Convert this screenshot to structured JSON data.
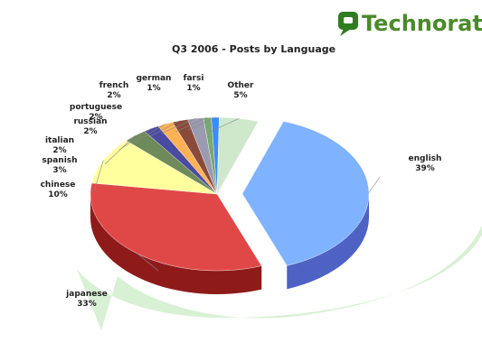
{
  "brand": {
    "name": "Technorati",
    "color": "#2f7d1f"
  },
  "chart_data": {
    "type": "pie",
    "title": "Q3 2006 - Posts by Language",
    "slices": [
      {
        "label": "english",
        "value": 39,
        "pct_text": "39%",
        "color": "#7fb2ff",
        "side": "#4e62c4"
      },
      {
        "label": "japanese",
        "value": 33,
        "pct_text": "33%",
        "color": "#e04848",
        "side": "#8e1a1a"
      },
      {
        "label": "chinese",
        "value": 10,
        "pct_text": "10%",
        "color": "#ffff9e",
        "side": "#7e8a4e"
      },
      {
        "label": "spanish",
        "value": 3,
        "pct_text": "3%",
        "color": "#6f8a5a",
        "side": "#4c603c"
      },
      {
        "label": "italian",
        "value": 2,
        "pct_text": "2%",
        "color": "#4a4aa0",
        "side": "#2a2a66"
      },
      {
        "label": "russian",
        "value": 2,
        "pct_text": "2%",
        "color": "#ffb155",
        "side": "#b27028"
      },
      {
        "label": "portuguese",
        "value": 2,
        "pct_text": "2%",
        "color": "#8a4a3a",
        "side": "#5a2a20"
      },
      {
        "label": "french",
        "value": 2,
        "pct_text": "2%",
        "color": "#9a9ab0",
        "side": "#66667a"
      },
      {
        "label": "german",
        "value": 1,
        "pct_text": "1%",
        "color": "#7aa870",
        "side": "#4e7448"
      },
      {
        "label": "farsi",
        "value": 1,
        "pct_text": "1%",
        "color": "#3a8cff",
        "side": "#2258b0"
      },
      {
        "label": "Other",
        "value": 5,
        "pct_text": "5%",
        "color": "#cfe8cc",
        "side": "#8fb08a"
      }
    ]
  }
}
